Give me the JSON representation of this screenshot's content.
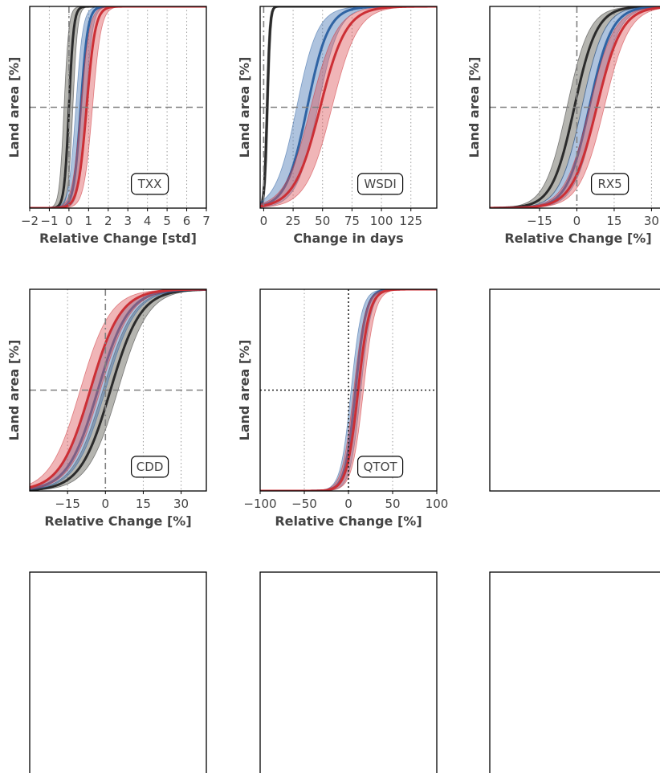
{
  "colors": {
    "dark": "#2b2b2b",
    "dark_fill": "#5a5a50",
    "blue": "#2f63a3",
    "blue_fill": "#4b7bb5",
    "red": "#cc2f35",
    "red_fill": "#de5b60",
    "axis": "#000000",
    "ref_line": "#808080"
  },
  "chart_data": [
    {
      "type": "line",
      "badge": "TXX",
      "xlabel": "Relative Change [std]",
      "ylabel": "Land area [%]",
      "xlim": [
        -2,
        7
      ],
      "ylim": [
        0,
        1
      ],
      "xticks": [
        -2,
        -1,
        0,
        1,
        2,
        3,
        4,
        5,
        6,
        7
      ],
      "xtick_labels": [
        "−2",
        "−1",
        "0",
        "1",
        "2",
        "3",
        "4",
        "5",
        "6",
        "7"
      ],
      "grid_x": [
        -1,
        0,
        1,
        2,
        3,
        4,
        5,
        6
      ],
      "vline": 0,
      "vline_style": "dashdot",
      "hline": 0.5,
      "hline_style": "dashed",
      "series": [
        {
          "color": "dark",
          "median": 0.0,
          "lo": -0.25,
          "hi": 0.2,
          "width": 0.12
        },
        {
          "color": "blue",
          "median": 0.6,
          "lo": 0.35,
          "hi": 0.85,
          "width": 0.18
        },
        {
          "color": "red",
          "median": 0.9,
          "lo": 0.6,
          "hi": 1.2,
          "width": 0.22
        }
      ]
    },
    {
      "type": "line",
      "badge": "WSDI",
      "xlabel": "Change in days",
      "ylabel": "Land area [%]",
      "xlim": [
        -3,
        147
      ],
      "ylim": [
        0,
        1
      ],
      "xticks": [
        0,
        25,
        50,
        75,
        100,
        125
      ],
      "xtick_labels": [
        "0",
        "25",
        "50",
        "75",
        "100",
        "125"
      ],
      "grid_x": [
        25,
        50,
        75,
        100,
        125
      ],
      "vline": 0,
      "vline_style": "dashdot",
      "hline": 0.5,
      "hline_style": "dashed",
      "series": [
        {
          "color": "dark",
          "median": 3,
          "lo": 2,
          "hi": 4,
          "width": 1.2
        },
        {
          "color": "blue",
          "median": 37,
          "lo": 28,
          "hi": 46,
          "width": 9
        },
        {
          "color": "red",
          "median": 48,
          "lo": 40,
          "hi": 58,
          "width": 11
        }
      ]
    },
    {
      "type": "line",
      "badge": "RX5",
      "xlabel": "Relative Change [%]",
      "ylabel": "Land area [%]",
      "xlim": [
        -35,
        36
      ],
      "ylim": [
        0,
        1
      ],
      "xticks": [
        -15,
        0,
        15,
        30
      ],
      "xtick_labels": [
        "−15",
        "0",
        "15",
        "30"
      ],
      "grid_x": [
        -15,
        15,
        30
      ],
      "vline": 0,
      "vline_style": "dashdot",
      "hline": 0.5,
      "hline_style": "dashed",
      "series": [
        {
          "color": "dark",
          "median": -1,
          "lo": -4,
          "hi": 2,
          "width": 4.5
        },
        {
          "color": "blue",
          "median": 5,
          "lo": 2,
          "hi": 8,
          "width": 4.5
        },
        {
          "color": "red",
          "median": 8,
          "lo": 5,
          "hi": 11,
          "width": 5
        }
      ]
    },
    {
      "type": "line",
      "badge": "CDD",
      "xlabel": "Relative Change [%]",
      "ylabel": "Land area [%]",
      "xlim": [
        -30,
        40
      ],
      "ylim": [
        0,
        1
      ],
      "xticks": [
        -15,
        0,
        15,
        30
      ],
      "xtick_labels": [
        "−15",
        "0",
        "15",
        "30"
      ],
      "grid_x": [
        -15,
        15,
        30
      ],
      "vline": 0,
      "vline_style": "dashdot",
      "hline": 0.5,
      "hline_style": "dashed",
      "series": [
        {
          "color": "dark",
          "median": 2,
          "lo": -1,
          "hi": 5,
          "width": 6
        },
        {
          "color": "blue",
          "median": -3,
          "lo": -6,
          "hi": 0,
          "width": 6
        },
        {
          "color": "red",
          "median": -6,
          "lo": -10,
          "hi": -2,
          "width": 6
        }
      ]
    },
    {
      "type": "line",
      "badge": "QTOT",
      "xlabel": "Relative Change [%]",
      "ylabel": "Land area [%]",
      "xlim": [
        -100,
        100
      ],
      "ylim": [
        0,
        1
      ],
      "xticks": [
        -100,
        -50,
        0,
        50,
        100
      ],
      "xtick_labels": [
        "−100",
        "−50",
        "0",
        "50",
        "100"
      ],
      "grid_x": [
        -50,
        50
      ],
      "vline": 0,
      "vline_style": "dotted",
      "hline": 0.5,
      "hline_style": "dotted",
      "series": [
        {
          "color": "blue",
          "median": 8,
          "lo": 3,
          "hi": 14,
          "width": 6
        },
        {
          "color": "red",
          "median": 11,
          "lo": 6,
          "hi": 17,
          "width": 6.5
        }
      ]
    },
    {
      "type": "line",
      "empty": true
    },
    {
      "type": "line",
      "empty": true
    },
    {
      "type": "line",
      "empty": true
    },
    {
      "type": "line",
      "empty": true
    }
  ]
}
